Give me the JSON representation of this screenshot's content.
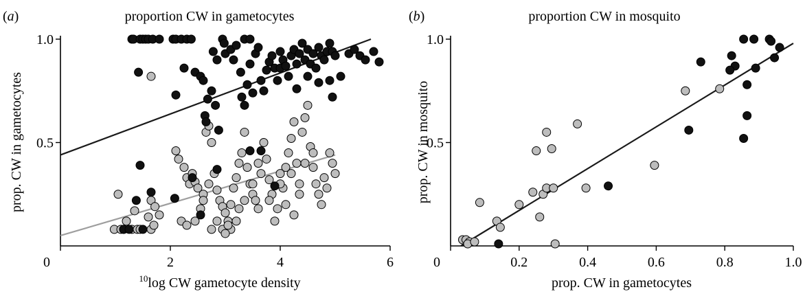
{
  "colors": {
    "black_point": "#111111",
    "grey_point": "#bdbdbd",
    "point_edge": "#000000",
    "black_line": "#1a1a1a",
    "grey_line": "#9e9e9e"
  },
  "chart_data": [
    {
      "type": "scatter",
      "panel_open": "(",
      "panel_letter": "a",
      "panel_close": ")",
      "title": "proportion CW in gametocytes",
      "xlabel_sup": "10",
      "xlabel_main": "log CW gametocyte density",
      "ylabel": "prop. CW in gametocytes",
      "xlim": [
        0,
        6
      ],
      "ylim": [
        0,
        1
      ],
      "xticks": [
        0,
        2,
        4,
        6
      ],
      "yticks": [
        0.5,
        1.0
      ],
      "xtick_labels": [
        "0",
        "2",
        "4",
        "6"
      ],
      "ytick_labels": [
        "0.5",
        "1.0"
      ],
      "series": [
        {
          "color": "black",
          "points": [
            [
              1.3,
              1.0
            ],
            [
              1.33,
              1.0
            ],
            [
              1.45,
              1.0
            ],
            [
              1.5,
              1.0
            ],
            [
              1.55,
              1.0
            ],
            [
              1.6,
              1.0
            ],
            [
              1.68,
              1.0
            ],
            [
              1.8,
              1.0
            ],
            [
              2.05,
              1.0
            ],
            [
              2.1,
              1.0
            ],
            [
              2.2,
              1.0
            ],
            [
              2.3,
              1.0
            ],
            [
              2.38,
              1.0
            ],
            [
              2.95,
              1.0
            ],
            [
              2.98,
              0.98
            ],
            [
              3.35,
              1.0
            ],
            [
              3.45,
              1.0
            ],
            [
              1.42,
              0.84
            ],
            [
              2.25,
              0.86
            ],
            [
              2.45,
              0.84
            ],
            [
              2.55,
              0.82
            ],
            [
              2.6,
              0.8
            ],
            [
              2.75,
              0.75
            ],
            [
              2.68,
              0.71
            ],
            [
              2.82,
              0.68
            ],
            [
              2.63,
              0.63
            ],
            [
              2.65,
              0.6
            ],
            [
              2.88,
              0.56
            ],
            [
              3.45,
              0.46
            ],
            [
              3.65,
              0.46
            ],
            [
              2.1,
              0.73
            ],
            [
              2.78,
              0.94
            ],
            [
              2.85,
              0.9
            ],
            [
              3.0,
              0.93
            ],
            [
              3.1,
              0.95
            ],
            [
              3.15,
              0.9
            ],
            [
              3.2,
              0.97
            ],
            [
              3.28,
              0.84
            ],
            [
              3.3,
              0.72
            ],
            [
              3.35,
              0.68
            ],
            [
              3.4,
              0.78
            ],
            [
              3.45,
              0.88
            ],
            [
              3.5,
              0.74
            ],
            [
              3.55,
              0.93
            ],
            [
              3.6,
              0.96
            ],
            [
              3.65,
              0.8
            ],
            [
              3.7,
              0.75
            ],
            [
              3.75,
              0.85
            ],
            [
              3.8,
              0.89
            ],
            [
              3.85,
              0.92
            ],
            [
              3.9,
              0.86
            ],
            [
              3.95,
              0.8
            ],
            [
              4.0,
              0.86
            ],
            [
              4.0,
              0.94
            ],
            [
              4.05,
              0.9
            ],
            [
              4.1,
              0.87
            ],
            [
              4.15,
              0.82
            ],
            [
              4.2,
              0.92
            ],
            [
              4.25,
              0.95
            ],
            [
              4.3,
              0.88
            ],
            [
              4.35,
              0.93
            ],
            [
              4.4,
              0.98
            ],
            [
              4.45,
              0.9
            ],
            [
              4.5,
              0.95
            ],
            [
              4.55,
              0.88
            ],
            [
              4.6,
              0.93
            ],
            [
              4.65,
              0.86
            ],
            [
              4.7,
              0.96
            ],
            [
              4.75,
              0.92
            ],
            [
              4.8,
              0.9
            ],
            [
              4.85,
              0.94
            ],
            [
              4.9,
              0.98
            ],
            [
              4.95,
              0.94
            ],
            [
              5.0,
              0.92
            ],
            [
              4.3,
              0.76
            ],
            [
              4.5,
              0.82
            ],
            [
              4.7,
              0.79
            ],
            [
              4.9,
              0.8
            ],
            [
              4.95,
              0.72
            ],
            [
              5.1,
              0.82
            ],
            [
              5.25,
              0.93
            ],
            [
              5.35,
              0.95
            ],
            [
              5.45,
              0.92
            ],
            [
              5.55,
              0.9
            ],
            [
              5.7,
              0.94
            ],
            [
              5.8,
              0.89
            ],
            [
              1.45,
              0.39
            ],
            [
              1.65,
              0.26
            ],
            [
              1.38,
              0.22
            ],
            [
              2.08,
              0.23
            ],
            [
              2.4,
              0.33
            ],
            [
              2.85,
              0.37
            ],
            [
              2.55,
              0.15
            ],
            [
              3.9,
              0.29
            ],
            [
              1.15,
              0.08
            ],
            [
              1.25,
              0.08
            ],
            [
              1.5,
              0.08
            ]
          ]
        },
        {
          "color": "grey",
          "points": [
            [
              0.98,
              0.08
            ],
            [
              1.05,
              0.25
            ],
            [
              1.1,
              0.08
            ],
            [
              1.15,
              0.08
            ],
            [
              1.2,
              0.12
            ],
            [
              1.3,
              0.08
            ],
            [
              1.35,
              0.17
            ],
            [
              1.4,
              0.08
            ],
            [
              1.45,
              0.08
            ],
            [
              1.6,
              0.14
            ],
            [
              1.65,
              0.08
            ],
            [
              1.7,
              0.1
            ],
            [
              1.8,
              0.15
            ],
            [
              1.65,
              0.22
            ],
            [
              1.72,
              0.19
            ],
            [
              1.65,
              0.82
            ],
            [
              2.1,
              0.46
            ],
            [
              2.15,
              0.42
            ],
            [
              2.25,
              0.38
            ],
            [
              2.3,
              0.33
            ],
            [
              2.35,
              0.3
            ],
            [
              2.4,
              0.35
            ],
            [
              2.45,
              0.31
            ],
            [
              2.5,
              0.28
            ],
            [
              2.2,
              0.12
            ],
            [
              2.3,
              0.1
            ],
            [
              2.45,
              0.12
            ],
            [
              2.55,
              0.18
            ],
            [
              2.6,
              0.25
            ],
            [
              2.65,
              0.55
            ],
            [
              2.7,
              0.58
            ],
            [
              2.75,
              0.5
            ],
            [
              2.8,
              0.35
            ],
            [
              2.85,
              0.27
            ],
            [
              2.9,
              0.22
            ],
            [
              2.95,
              0.19
            ],
            [
              3.0,
              0.16
            ],
            [
              3.05,
              0.12
            ],
            [
              3.1,
              0.08
            ],
            [
              3.1,
              0.2
            ],
            [
              3.15,
              0.28
            ],
            [
              3.2,
              0.33
            ],
            [
              3.25,
              0.4
            ],
            [
              3.3,
              0.45
            ],
            [
              3.35,
              0.55
            ],
            [
              3.4,
              0.38
            ],
            [
              3.45,
              0.3
            ],
            [
              3.5,
              0.25
            ],
            [
              3.55,
              0.22
            ],
            [
              3.6,
              0.4
            ],
            [
              3.65,
              0.35
            ],
            [
              3.7,
              0.5
            ],
            [
              3.75,
              0.42
            ],
            [
              3.8,
              0.32
            ],
            [
              3.85,
              0.25
            ],
            [
              3.9,
              0.12
            ],
            [
              3.95,
              0.18
            ],
            [
              4.0,
              0.35
            ],
            [
              4.05,
              0.28
            ],
            [
              4.1,
              0.38
            ],
            [
              4.15,
              0.45
            ],
            [
              4.2,
              0.52
            ],
            [
              4.25,
              0.6
            ],
            [
              4.3,
              0.4
            ],
            [
              4.35,
              0.3
            ],
            [
              4.4,
              0.55
            ],
            [
              4.45,
              0.62
            ],
            [
              4.5,
              0.68
            ],
            [
              4.55,
              0.48
            ],
            [
              4.6,
              0.38
            ],
            [
              4.65,
              0.3
            ],
            [
              4.7,
              0.25
            ],
            [
              4.75,
              0.2
            ],
            [
              4.8,
              0.33
            ],
            [
              4.85,
              0.28
            ],
            [
              4.9,
              0.45
            ],
            [
              4.95,
              0.4
            ],
            [
              5.0,
              0.35
            ],
            [
              2.95,
              0.08
            ],
            [
              3.0,
              0.06
            ],
            [
              3.05,
              0.1
            ],
            [
              3.2,
              0.12
            ],
            [
              3.25,
              0.18
            ],
            [
              3.35,
              0.22
            ],
            [
              2.85,
              0.12
            ],
            [
              2.75,
              0.08
            ],
            [
              2.7,
              0.3
            ],
            [
              2.6,
              0.22
            ],
            [
              4.1,
              0.2
            ],
            [
              4.25,
              0.15
            ],
            [
              4.35,
              0.25
            ],
            [
              3.5,
              0.3
            ],
            [
              3.6,
              0.18
            ],
            [
              3.8,
              0.22
            ],
            [
              4.0,
              0.3
            ],
            [
              4.2,
              0.35
            ],
            [
              4.45,
              0.4
            ],
            [
              4.6,
              0.45
            ]
          ]
        }
      ],
      "fit_lines": [
        {
          "color": "black",
          "from": [
            0,
            0.44
          ],
          "to": [
            5.65,
            1.0
          ]
        },
        {
          "color": "grey",
          "from": [
            0,
            0.05
          ],
          "to": [
            5.0,
            0.44
          ]
        }
      ]
    },
    {
      "type": "scatter",
      "panel_open": "(",
      "panel_letter": "b",
      "panel_close": ")",
      "title": "proportion CW in mosquito",
      "xlabel": "prop. CW in gametocytes",
      "ylabel": "prop. CW in mosquito",
      "xlim": [
        0,
        1
      ],
      "ylim": [
        0,
        1
      ],
      "xticks": [
        0,
        0.2,
        0.4,
        0.6,
        0.8,
        1.0
      ],
      "yticks": [
        0.5,
        1.0
      ],
      "xtick_labels": [
        "0",
        "0.2",
        "0.4",
        "0.6",
        "0.8",
        "1.0"
      ],
      "ytick_labels": [
        "0.5",
        "1.0"
      ],
      "series": [
        {
          "color": "black",
          "points": [
            [
              0.855,
              1.0
            ],
            [
              0.885,
              1.0
            ],
            [
              0.93,
              1.0
            ],
            [
              0.935,
              0.99
            ],
            [
              0.96,
              0.96
            ],
            [
              0.945,
              0.91
            ],
            [
              0.82,
              0.92
            ],
            [
              0.83,
              0.87
            ],
            [
              0.815,
              0.85
            ],
            [
              0.89,
              0.86
            ],
            [
              0.73,
              0.89
            ],
            [
              0.865,
              0.78
            ],
            [
              0.865,
              0.63
            ],
            [
              0.855,
              0.52
            ],
            [
              0.695,
              0.56
            ],
            [
              0.46,
              0.29
            ],
            [
              0.14,
              0.01
            ]
          ]
        },
        {
          "color": "grey",
          "points": [
            [
              0.035,
              0.03
            ],
            [
              0.045,
              0.03
            ],
            [
              0.055,
              0.02
            ],
            [
              0.05,
              0.01
            ],
            [
              0.07,
              0.02
            ],
            [
              0.085,
              0.21
            ],
            [
              0.135,
              0.12
            ],
            [
              0.145,
              0.09
            ],
            [
              0.2,
              0.2
            ],
            [
              0.24,
              0.26
            ],
            [
              0.25,
              0.46
            ],
            [
              0.26,
              0.14
            ],
            [
              0.27,
              0.25
            ],
            [
              0.28,
              0.55
            ],
            [
              0.28,
              0.28
            ],
            [
              0.295,
              0.47
            ],
            [
              0.3,
              0.28
            ],
            [
              0.305,
              0.01
            ],
            [
              0.37,
              0.59
            ],
            [
              0.395,
              0.28
            ],
            [
              0.595,
              0.39
            ],
            [
              0.685,
              0.75
            ],
            [
              0.785,
              0.76
            ]
          ]
        }
      ],
      "fit_lines": [
        {
          "color": "black",
          "from": [
            0.03,
            0.0
          ],
          "to": [
            1.0,
            0.98
          ]
        }
      ]
    }
  ]
}
